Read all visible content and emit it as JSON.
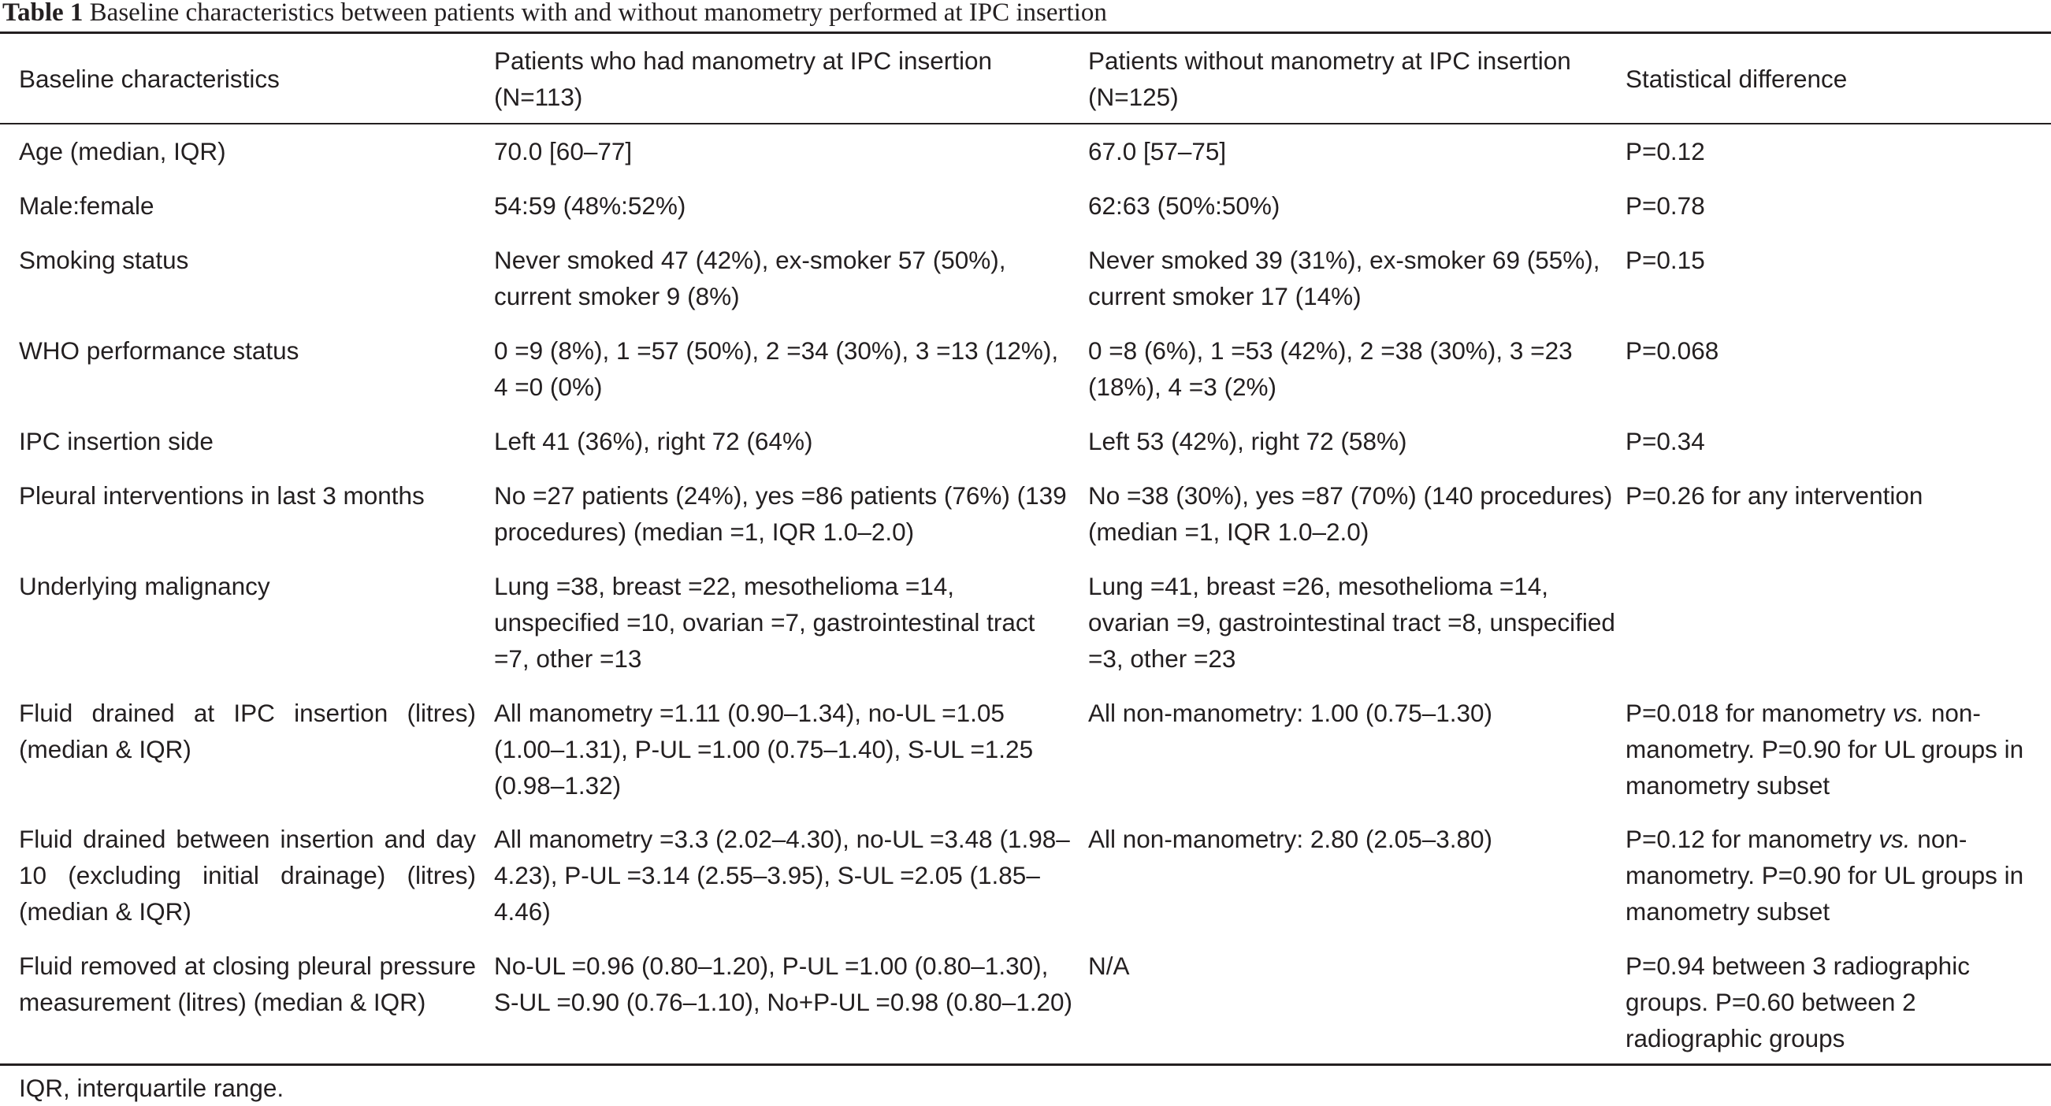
{
  "title": {
    "label": "Table 1",
    "text": "Baseline characteristics between patients with and without manometry performed at IPC insertion"
  },
  "headers": {
    "col1": "Baseline characteristics",
    "col2": "Patients who had manometry at IPC insertion (N=113)",
    "col3": "Patients without manometry at IPC insertion (N=125)",
    "col4": "Statistical difference"
  },
  "rows": [
    {
      "c1": "Age (median, IQR)",
      "c2": "70.0 [60–77]",
      "c3": "67.0 [57–75]",
      "c4": "P=0.12"
    },
    {
      "c1": "Male:female",
      "c2": "54:59 (48%:52%)",
      "c3": "62:63 (50%:50%)",
      "c4": "P=0.78"
    },
    {
      "c1": "Smoking status",
      "c2": "Never smoked 47 (42%), ex-smoker 57 (50%), current smoker 9 (8%)",
      "c3": "Never smoked 39 (31%), ex-smoker 69 (55%), current smoker 17 (14%)",
      "c4": "P=0.15"
    },
    {
      "c1": "WHO performance status",
      "c2": "0 =9 (8%), 1 =57 (50%), 2 =34 (30%), 3 =13 (12%), 4 =0 (0%)",
      "c3": "0 =8 (6%), 1 =53 (42%), 2 =38 (30%), 3 =23 (18%), 4 =3 (2%)",
      "c4": "P=0.068"
    },
    {
      "c1": "IPC insertion side",
      "c2": "Left 41 (36%), right 72 (64%)",
      "c3": "Left 53 (42%), right 72 (58%)",
      "c4": "P=0.34"
    },
    {
      "c1": "Pleural interventions in last 3 months",
      "c2": "No =27 patients (24%), yes =86 patients (76%) (139 procedures) (median =1, IQR 1.0–2.0)",
      "c3": "No =38 (30%), yes =87 (70%) (140 procedures) (median =1, IQR 1.0–2.0)",
      "c4": "P=0.26 for any intervention"
    },
    {
      "c1": "Underlying malignancy",
      "c2": "Lung =38, breast =22, mesothelioma =14, unspecified =10, ovarian =7, gastrointestinal tract =7, other =13",
      "c3": "Lung =41, breast =26, mesothelioma =14, ovarian =9, gastrointestinal tract =8, unspecified =3, other =23",
      "c4": ""
    },
    {
      "c1": "Fluid drained at IPC insertion (litres) (median & IQR)",
      "c2": "All manometry =1.11 (0.90–1.34), no-UL =1.05 (1.00–1.31), P-UL =1.00 (0.75–1.40), S-UL =1.25 (0.98–1.32)",
      "c3": "All non-manometry: 1.00 (0.75–1.30)",
      "c4a": "P=0.018 for manometry ",
      "c4i": "vs.",
      "c4b": " non-manometry. P=0.90 for UL groups in manometry subset"
    },
    {
      "c1": "Fluid drained between insertion and day 10 (excluding initial drainage) (litres) (median & IQR)",
      "c2": "All manometry =3.3 (2.02–4.30), no-UL =3.48 (1.98–4.23), P-UL =3.14 (2.55–3.95), S-UL =2.05 (1.85–4.46)",
      "c3": "All non-manometry: 2.80 (2.05–3.80)",
      "c4a": "P=0.12 for manometry ",
      "c4i": "vs.",
      "c4b": " non-manometry. P=0.90 for UL groups in manometry subset"
    },
    {
      "c1": "Fluid removed at closing pleural pressure measurement (litres) (median & IQR)",
      "c2": "No-UL =0.96 (0.80–1.20), P-UL =1.00 (0.80–1.30), S-UL =0.90 (0.76–1.10), No+P-UL =0.98 (0.80–1.20)",
      "c3": "N/A",
      "c4": "P=0.94 between 3 radiographic groups. P=0.60 between 2 radiographic groups"
    }
  ],
  "footnote": "IQR, interquartile range."
}
